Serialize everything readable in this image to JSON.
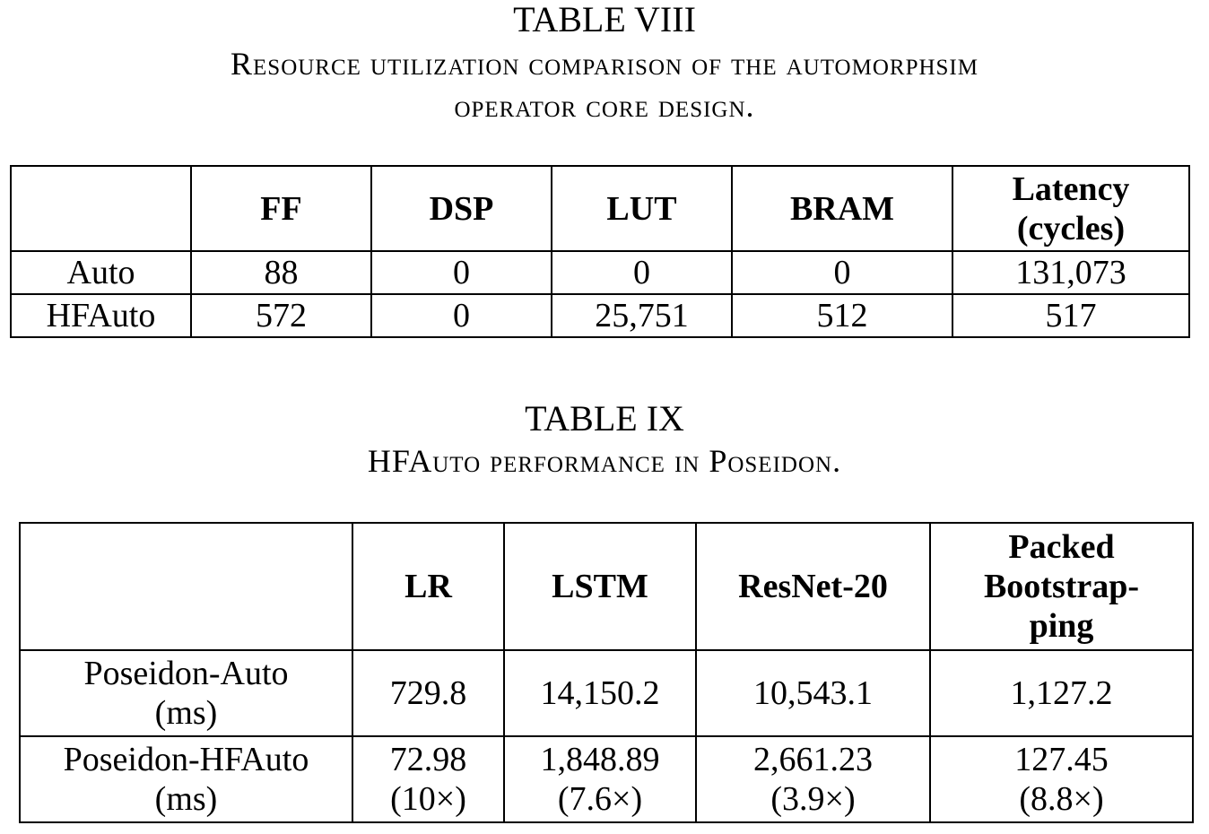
{
  "table8": {
    "label": "TABLE VIII",
    "caption_line1": "Resource utilization comparison of the automorphsim",
    "caption_line2": "operator core design.",
    "columns": [
      "",
      "FF",
      "DSP",
      "LUT",
      "BRAM",
      "Latency",
      "(cycles)"
    ],
    "rows": [
      {
        "name": "Auto",
        "ff": "88",
        "dsp": "0",
        "lut": "0",
        "bram": "0",
        "latency": "131,073"
      },
      {
        "name": "HFAuto",
        "ff": "572",
        "dsp": "0",
        "lut": "25,751",
        "bram": "512",
        "latency": "517"
      }
    ]
  },
  "table9": {
    "label": "TABLE IX",
    "caption": "HFAuto performance in Poseidon.",
    "columns": {
      "lr": "LR",
      "lstm": "LSTM",
      "resnet": "ResNet-20",
      "packed_l1": "Packed",
      "packed_l2": "Bootstrap-",
      "packed_l3": "ping"
    },
    "rows": [
      {
        "name_l1": "Poseidon-Auto",
        "name_l2": "(ms)",
        "lr": "729.8",
        "lr_x": "",
        "lstm": "14,150.2",
        "lstm_x": "",
        "resnet": "10,543.1",
        "resnet_x": "",
        "packed": "1,127.2",
        "packed_x": ""
      },
      {
        "name_l1": "Poseidon-HFAuto",
        "name_l2": "(ms)",
        "lr": "72.98",
        "lr_x": "(10×)",
        "lstm": "1,848.89",
        "lstm_x": "(7.6×)",
        "resnet": "2,661.23",
        "resnet_x": "(3.9×)",
        "packed": "127.45",
        "packed_x": "(8.8×)"
      }
    ]
  }
}
